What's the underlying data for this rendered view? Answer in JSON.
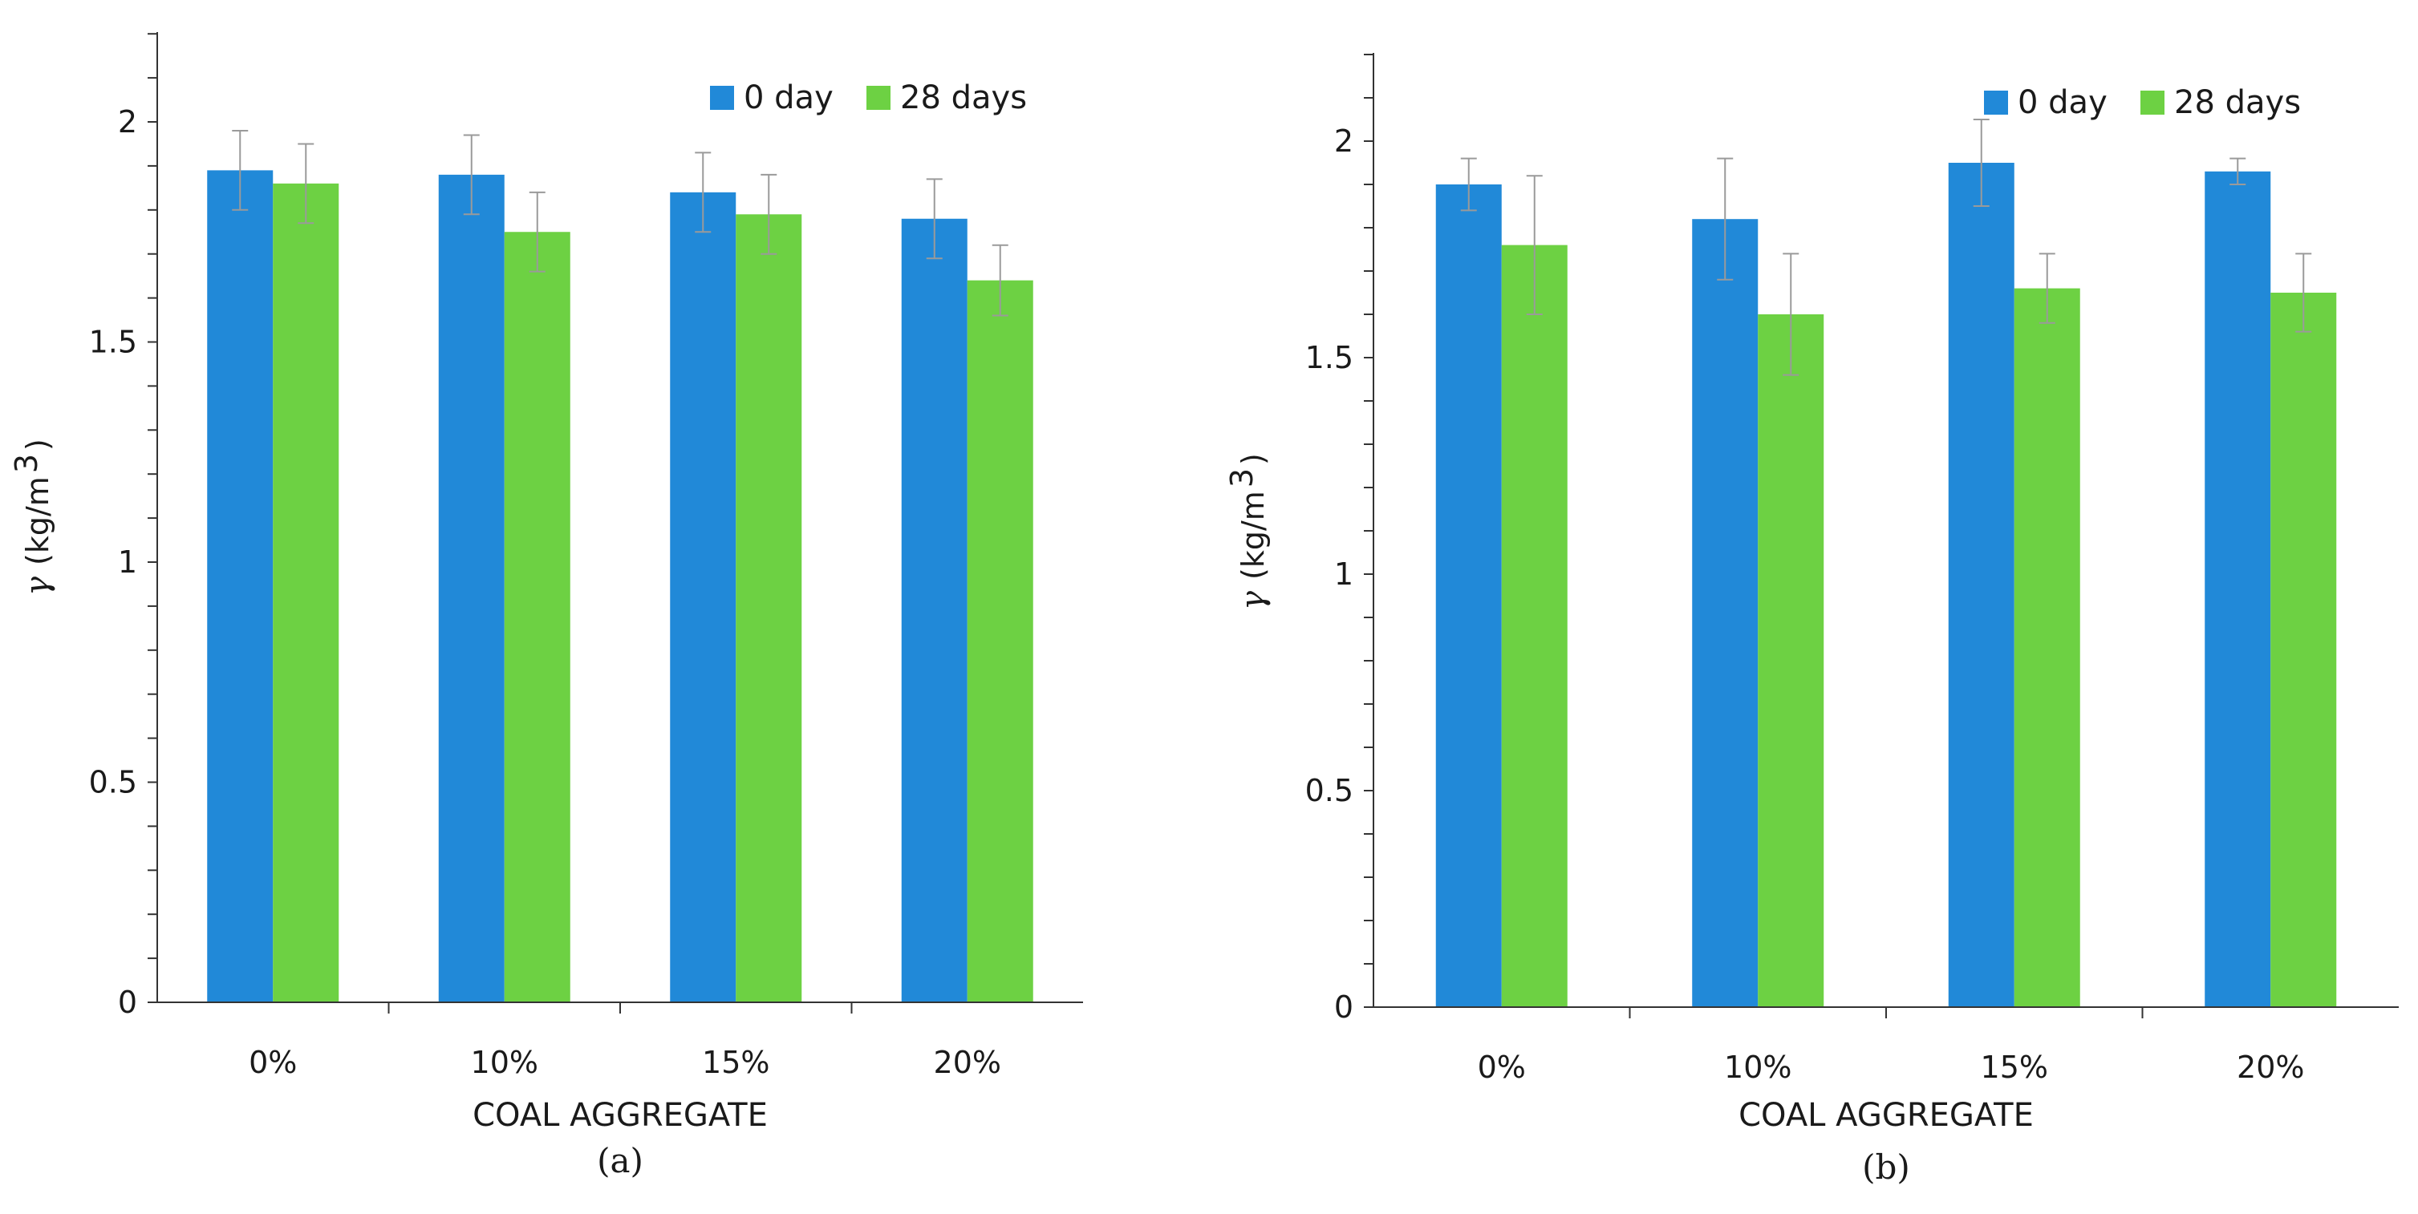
{
  "colors": {
    "day0": "#2189d8",
    "day28": "#6dd143"
  },
  "chart_data": [
    {
      "type": "bar",
      "panel_label": "(a)",
      "xlabel": "COAL AGGREGATE",
      "ylabel": {
        "symbol": "γ",
        "unit": "(kg/m",
        "sup": "3",
        "close": ")"
      },
      "categories": [
        "0%",
        "10%",
        "15%",
        "20%"
      ],
      "yticks": [
        "0",
        "0.5",
        "1",
        "1.5",
        "2"
      ],
      "ylim": [
        0,
        2.2
      ],
      "legend_position": "top-right",
      "series": [
        {
          "name": "0 day",
          "color_key": "day0",
          "values": [
            1.89,
            1.88,
            1.84,
            1.78
          ],
          "errors": [
            0.09,
            0.09,
            0.09,
            0.09
          ]
        },
        {
          "name": "28 days",
          "color_key": "day28",
          "values": [
            1.86,
            1.75,
            1.79,
            1.64
          ],
          "errors": [
            0.09,
            0.09,
            0.09,
            0.08
          ]
        }
      ]
    },
    {
      "type": "bar",
      "panel_label": "(b)",
      "xlabel": "COAL AGGREGATE",
      "ylabel": {
        "symbol": "γ",
        "unit": "(kg/m",
        "sup": "3",
        "close": ")"
      },
      "categories": [
        "0%",
        "10%",
        "15%",
        "20%"
      ],
      "yticks": [
        "0",
        "0.5",
        "1",
        "1.5",
        "2"
      ],
      "ylim": [
        0,
        2.2
      ],
      "legend_position": "top-right",
      "series": [
        {
          "name": "0 day",
          "color_key": "day0",
          "values": [
            1.9,
            1.82,
            1.95,
            1.93
          ],
          "errors": [
            0.06,
            0.14,
            0.1,
            0.03
          ]
        },
        {
          "name": "28 days",
          "color_key": "day28",
          "values": [
            1.76,
            1.6,
            1.66,
            1.65
          ],
          "errors": [
            0.16,
            0.14,
            0.08,
            0.09
          ]
        }
      ]
    }
  ]
}
